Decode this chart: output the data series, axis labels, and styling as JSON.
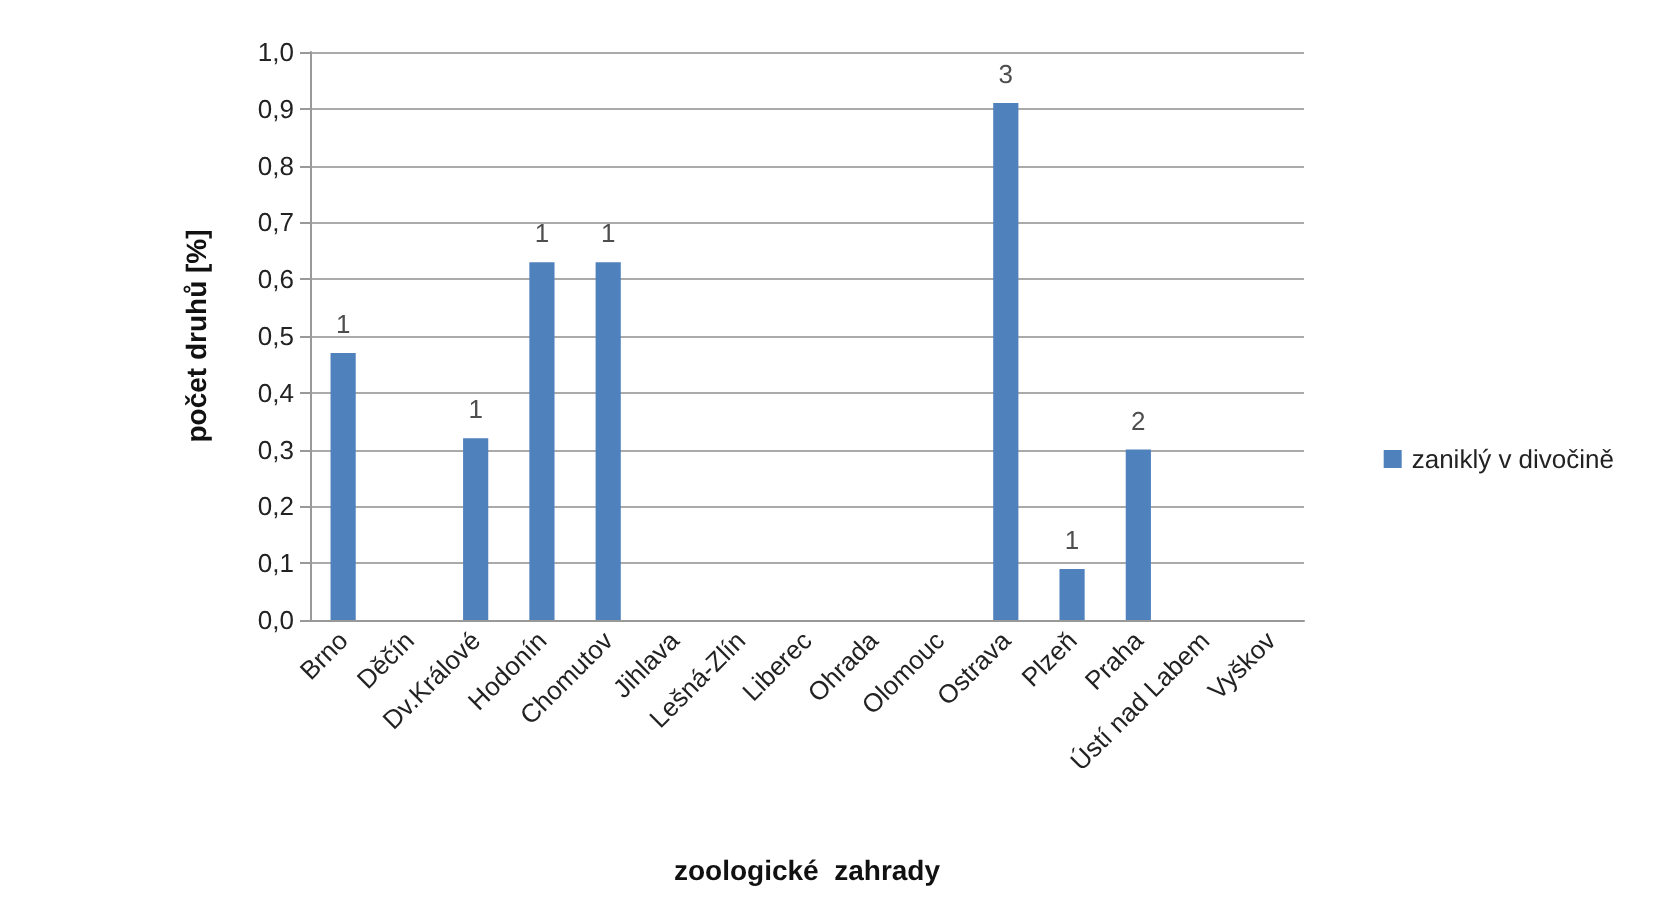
{
  "chart_data": {
    "type": "bar",
    "xlabel": "zoologické  zahrady",
    "ylabel": "počet druhů [%]",
    "categories": [
      "Brno",
      "Děčín",
      "Dv.Králové",
      "Hodonín",
      "Chomutov",
      "Jihlava",
      "Lešná-Zlín",
      "Liberec",
      "Ohrada",
      "Olomouc",
      "Ostrava",
      "Plzeň",
      "Praha",
      "Ústí nad Labem",
      "Vyškov"
    ],
    "series": [
      {
        "name": "zaniklý v divočině",
        "color": "#4f81bd",
        "values": [
          0.47,
          0,
          0.32,
          0.63,
          0.63,
          0,
          0,
          0,
          0,
          0,
          0.91,
          0.09,
          0.3,
          0,
          0
        ]
      }
    ],
    "annotations": [
      {
        "text": "1",
        "x": "Brno",
        "y": 0.47
      },
      {
        "text": "1",
        "x": "Dv.Králové",
        "y": 0.32
      },
      {
        "text": "1",
        "x": "Hodonín",
        "y": 0.63
      },
      {
        "text": "1",
        "x": "Chomutov",
        "y": 0.63
      },
      {
        "text": "3",
        "x": "Ostrava",
        "y": 0.91
      },
      {
        "text": "1",
        "x": "Plzeň",
        "y": 0.09
      },
      {
        "text": "2",
        "x": "Praha",
        "y": 0.3
      }
    ],
    "ylim": [
      0,
      1
    ],
    "yticks": [
      {
        "value": 0,
        "label": "0,0"
      },
      {
        "value": 0.1,
        "label": "0,1"
      },
      {
        "value": 0.2,
        "label": "0,2"
      },
      {
        "value": 0.3,
        "label": "0,3"
      },
      {
        "value": 0.4,
        "label": "0,4"
      },
      {
        "value": 0.5,
        "label": "0,5"
      },
      {
        "value": 0.6,
        "label": "0,6"
      },
      {
        "value": 0.7,
        "label": "0,7"
      },
      {
        "value": 0.8,
        "label": "0,8"
      },
      {
        "value": 0.9,
        "label": "0,9"
      },
      {
        "value": 1,
        "label": "1,0"
      }
    ],
    "grid": "y",
    "legend": "right"
  }
}
